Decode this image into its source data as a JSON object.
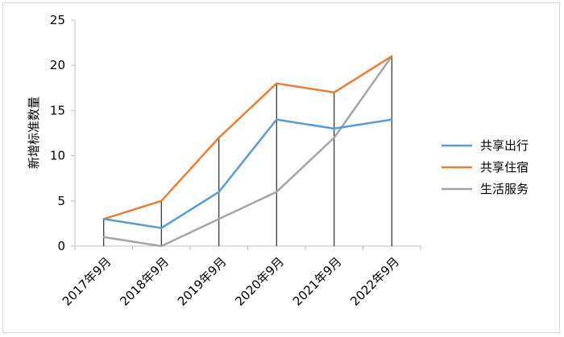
{
  "chart_data": {
    "type": "line",
    "ylabel": "新增标准数量",
    "ylim": [
      0,
      25
    ],
    "y_ticks": [
      "0",
      "5",
      "10",
      "15",
      "20",
      "25"
    ],
    "categories": [
      "2017年9月",
      "2018年9月",
      "2019年9月",
      "2020年9月",
      "2021年9月",
      "2022年9月"
    ],
    "series": [
      {
        "name": "共享出行",
        "color": "#5b9bd5",
        "values": [
          3,
          2,
          6,
          14,
          13,
          14
        ]
      },
      {
        "name": "共享住宿",
        "color": "#ed7d31",
        "values": [
          3,
          5,
          12,
          18,
          17,
          21
        ]
      },
      {
        "name": "生活服务",
        "color": "#a5a5a5",
        "values": [
          1,
          0,
          3,
          6,
          12,
          21
        ]
      }
    ],
    "drop_lines": true,
    "legend_position": "right",
    "grid": false
  }
}
